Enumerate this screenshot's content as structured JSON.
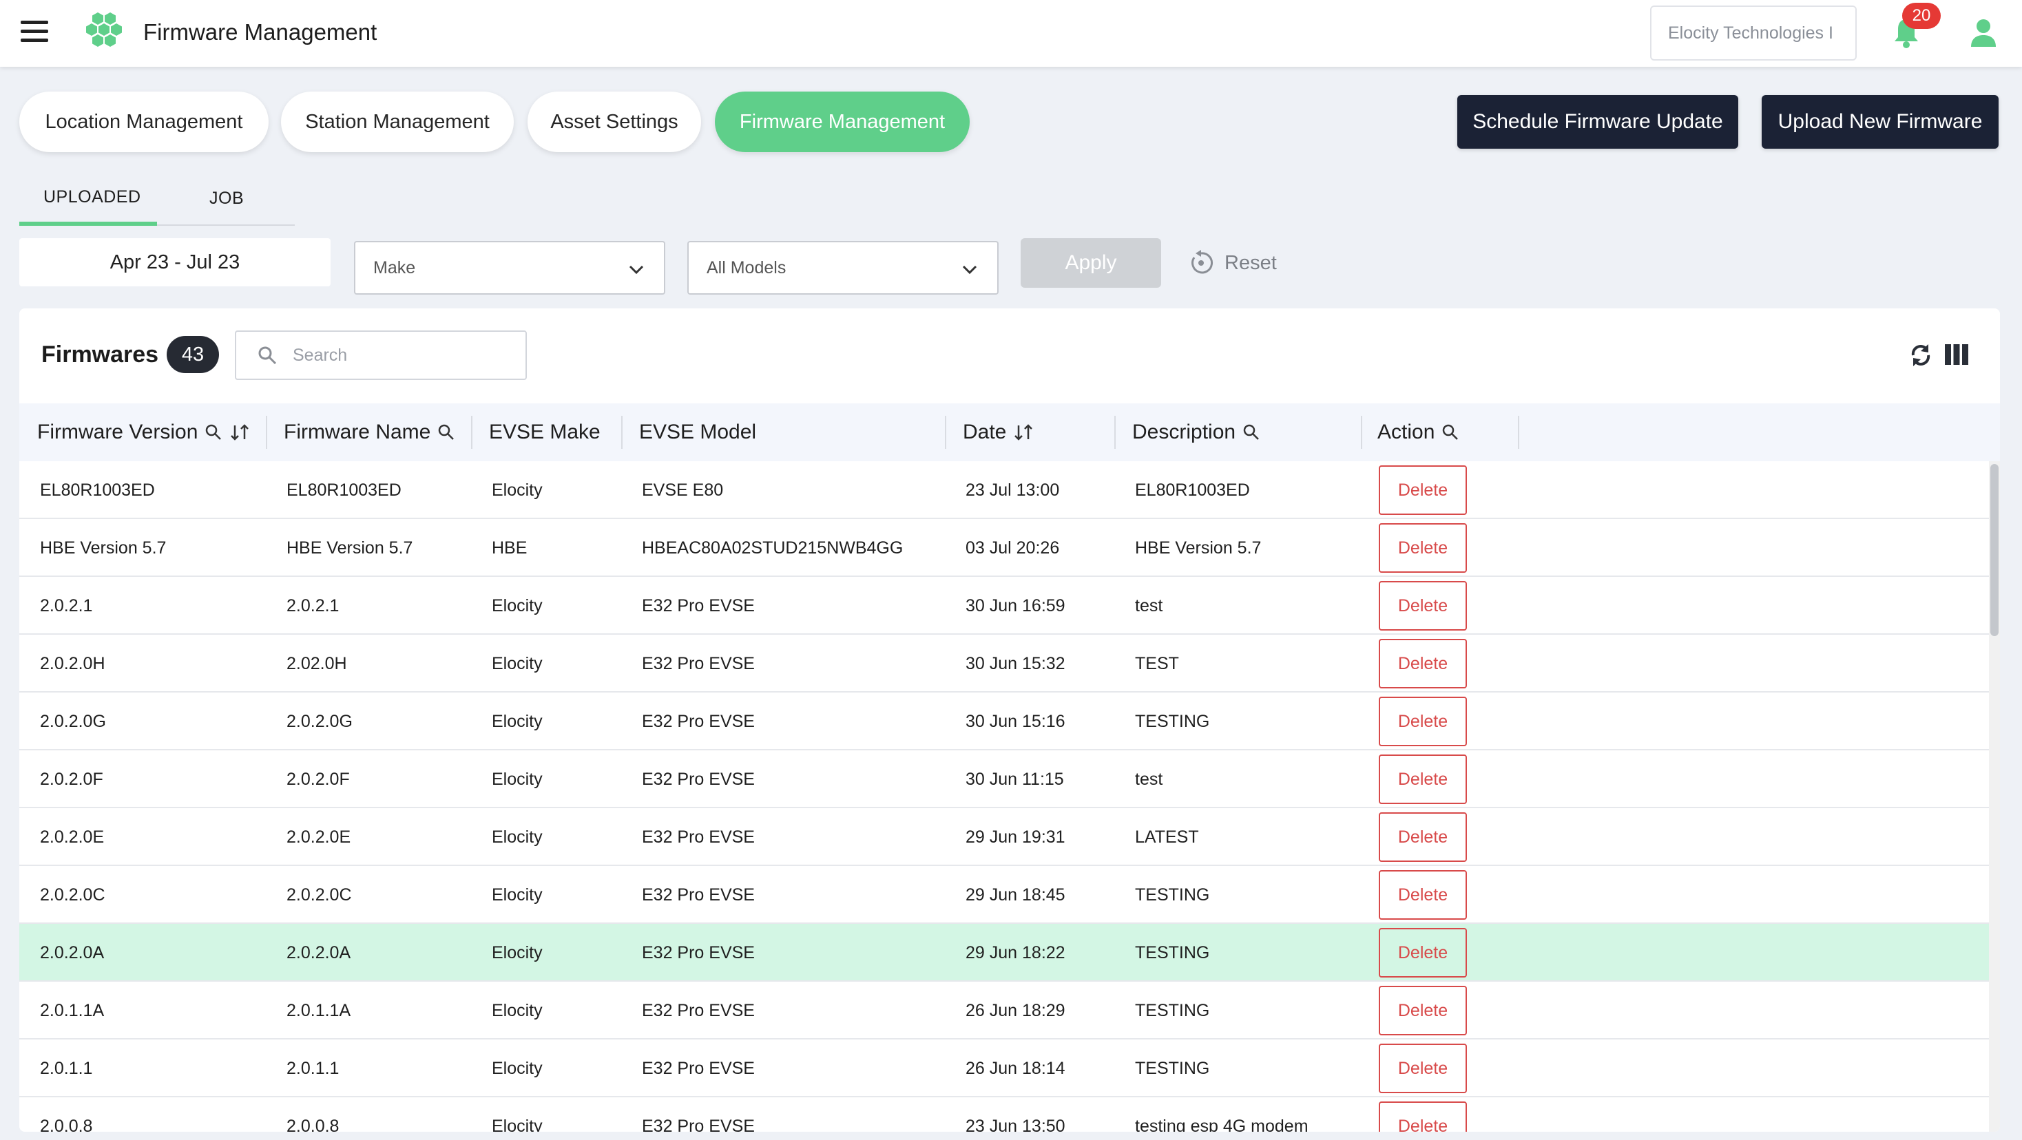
{
  "header": {
    "title": "Firmware Management",
    "org": "Elocity Technologies I",
    "notification_count": "20",
    "brand_color": "#5fcf8a"
  },
  "nav": {
    "pills": [
      {
        "label": "Location Management"
      },
      {
        "label": "Station Management"
      },
      {
        "label": "Asset Settings"
      },
      {
        "label": "Firmware Management"
      }
    ],
    "schedule_label": "Schedule Firmware Update",
    "upload_label": "Upload New Firmware"
  },
  "tabs": {
    "uploaded": "UPLOADED",
    "job": "JOB"
  },
  "filters": {
    "date_range": "Apr 23 - Jul 23",
    "make_value": "Make",
    "model_value": "All Models",
    "apply_label": "Apply",
    "reset_label": "Reset"
  },
  "card": {
    "title": "Firmwares",
    "count": "43",
    "search_placeholder": "Search"
  },
  "table": {
    "headers": [
      "Firmware Version",
      "Firmware Name",
      "EVSE Make",
      "EVSE Model",
      "Date",
      "Description",
      "Action"
    ],
    "delete_label": "Delete",
    "rows": [
      {
        "version": "EL80R1003ED",
        "name": "EL80R1003ED",
        "make": "Elocity",
        "model": "EVSE E80",
        "date": "23 Jul 13:00",
        "description": "EL80R1003ED"
      },
      {
        "version": "HBE Version 5.7",
        "name": "HBE Version 5.7",
        "make": "HBE",
        "model": "HBEAC80A02STUD215NWB4GG",
        "date": "03 Jul 20:26",
        "description": "HBE Version 5.7"
      },
      {
        "version": "2.0.2.1",
        "name": "2.0.2.1",
        "make": "Elocity",
        "model": "E32 Pro EVSE",
        "date": "30 Jun 16:59",
        "description": "test"
      },
      {
        "version": "2.0.2.0H",
        "name": "2.02.0H",
        "make": "Elocity",
        "model": "E32 Pro EVSE",
        "date": "30 Jun 15:32",
        "description": "TEST"
      },
      {
        "version": "2.0.2.0G",
        "name": "2.0.2.0G",
        "make": "Elocity",
        "model": "E32 Pro EVSE",
        "date": "30 Jun 15:16",
        "description": "TESTING"
      },
      {
        "version": "2.0.2.0F",
        "name": "2.0.2.0F",
        "make": "Elocity",
        "model": "E32 Pro EVSE",
        "date": "30 Jun 11:15",
        "description": "test"
      },
      {
        "version": "2.0.2.0E",
        "name": "2.0.2.0E",
        "make": "Elocity",
        "model": "E32 Pro EVSE",
        "date": "29 Jun 19:31",
        "description": "LATEST"
      },
      {
        "version": "2.0.2.0C",
        "name": "2.0.2.0C",
        "make": "Elocity",
        "model": "E32 Pro EVSE",
        "date": "29 Jun 18:45",
        "description": "TESTING"
      },
      {
        "version": "2.0.2.0A",
        "name": "2.0.2.0A",
        "make": "Elocity",
        "model": "E32 Pro EVSE",
        "date": "29 Jun 18:22",
        "description": "TESTING",
        "highlighted": true
      },
      {
        "version": "2.0.1.1A",
        "name": "2.0.1.1A",
        "make": "Elocity",
        "model": "E32 Pro EVSE",
        "date": "26 Jun 18:29",
        "description": "TESTING"
      },
      {
        "version": "2.0.1.1",
        "name": "2.0.1.1",
        "make": "Elocity",
        "model": "E32 Pro EVSE",
        "date": "26 Jun 18:14",
        "description": "TESTING"
      },
      {
        "version": "2.0.0.8",
        "name": "2.0.0.8",
        "make": "Elocity",
        "model": "E32 Pro EVSE",
        "date": "23 Jun 13:50",
        "description": "testing esp 4G modem"
      }
    ]
  }
}
